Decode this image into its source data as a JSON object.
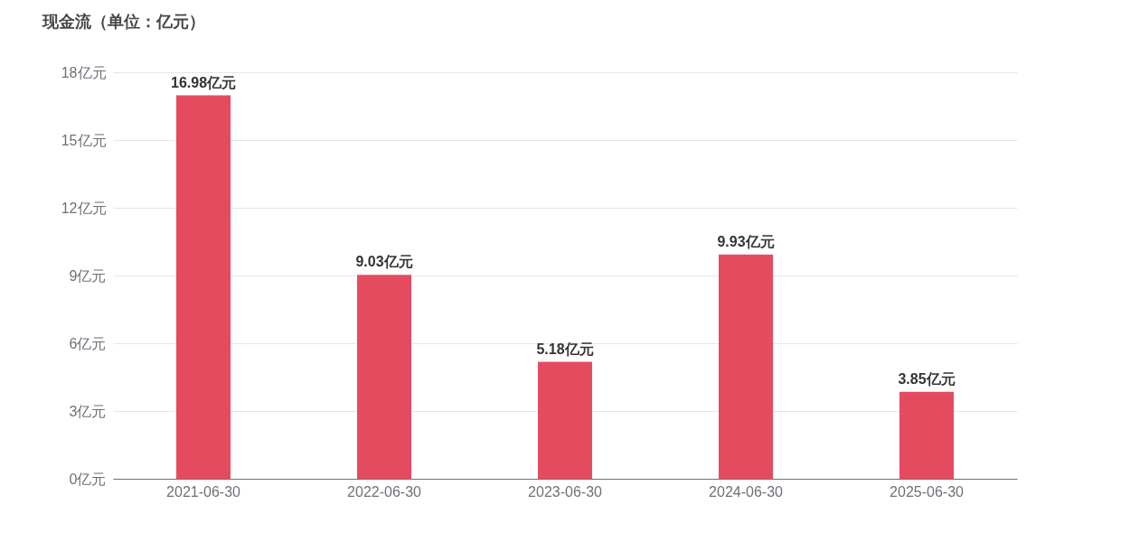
{
  "chart_data": {
    "type": "bar",
    "title": "现金流（单位：亿元）",
    "categories": [
      "2021-06-30",
      "2022-06-30",
      "2023-06-30",
      "2024-06-30",
      "2025-06-30"
    ],
    "values": [
      16.98,
      9.03,
      5.18,
      9.93,
      3.85
    ],
    "value_labels": [
      "16.98亿元",
      "9.03亿元",
      "5.18亿元",
      "9.93亿元",
      "3.85亿元"
    ],
    "color": "#e54b5f",
    "ylim": [
      0,
      18
    ],
    "yticks": [
      {
        "value": 0,
        "label": "0亿元"
      },
      {
        "value": 3,
        "label": "3亿元"
      },
      {
        "value": 6,
        "label": "6亿元"
      },
      {
        "value": 9,
        "label": "9亿元"
      },
      {
        "value": 12,
        "label": "12亿元"
      },
      {
        "value": 15,
        "label": "15亿元"
      },
      {
        "value": 18,
        "label": "18亿元"
      }
    ],
    "grid": "y"
  }
}
